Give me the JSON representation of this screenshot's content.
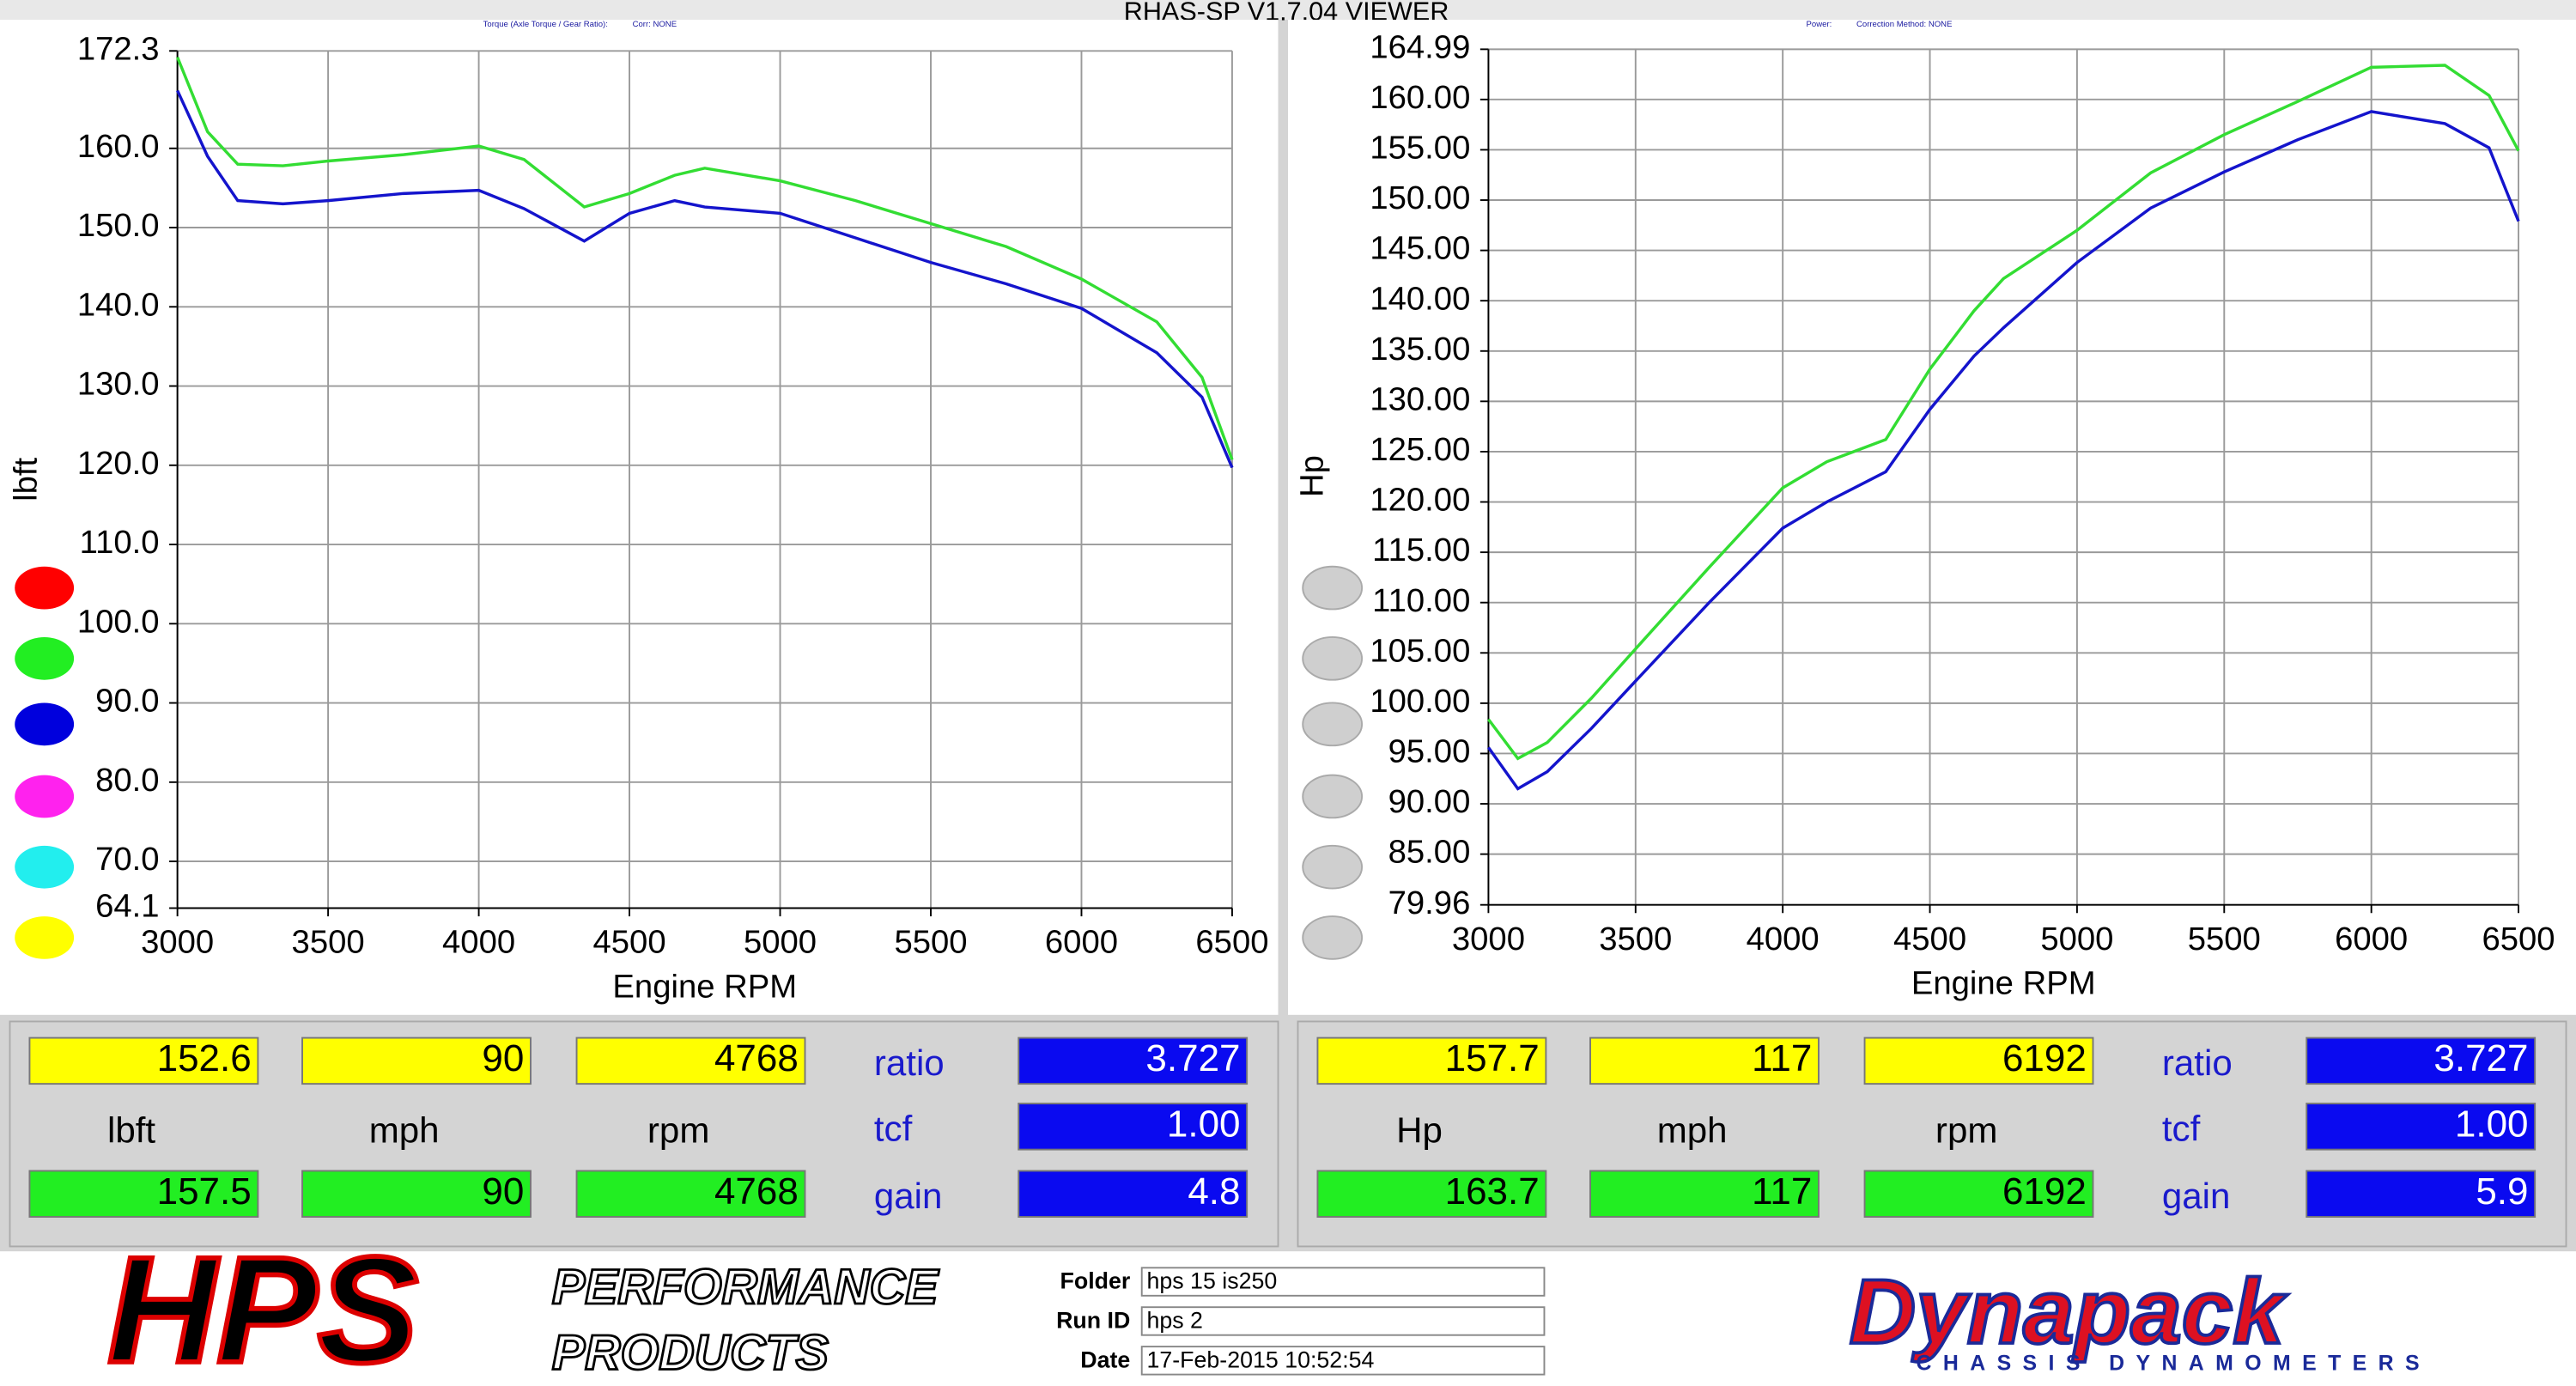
{
  "window_title": "RHAS-SP V1.7.04  VIEWER",
  "chart_data": [
    {
      "type": "line",
      "title": "Torque (Axle Torque / Gear Ratio):",
      "subtitle": "Corr: NONE",
      "x_label": "Engine RPM",
      "y_label": "lbft",
      "x": [
        3000,
        3100,
        3200,
        3350,
        3500,
        3750,
        4000,
        4150,
        4350,
        4500,
        4650,
        4750,
        5000,
        5250,
        5500,
        5750,
        6000,
        6250,
        6400,
        6500
      ],
      "series": [
        {
          "color": "#33dd33",
          "values": [
            171.5,
            162.1,
            158.0,
            157.8,
            158.4,
            159.2,
            160.3,
            158.6,
            152.6,
            154.3,
            156.6,
            157.5,
            155.9,
            153.4,
            150.5,
            147.6,
            143.5,
            138.1,
            131.1,
            120.7
          ]
        },
        {
          "color": "#1414cc",
          "values": [
            167.3,
            159.0,
            153.4,
            153.0,
            153.4,
            154.3,
            154.7,
            152.4,
            148.3,
            151.8,
            153.4,
            152.6,
            151.8,
            148.7,
            145.6,
            142.9,
            139.8,
            134.2,
            128.6,
            119.7
          ]
        }
      ],
      "xlim": [
        3000,
        6500
      ],
      "xticks": [
        3000,
        3500,
        4000,
        4500,
        5000,
        5500,
        6000,
        6500
      ],
      "ylim": [
        64.1,
        172.3
      ],
      "yticks": [
        64.1,
        {
          "value": 70,
          "label": "70.0"
        },
        {
          "value": 80,
          "label": "80.0"
        },
        {
          "value": 90,
          "label": "90.0"
        },
        {
          "value": 100,
          "label": "100.0"
        },
        {
          "value": 110,
          "label": "110.0"
        },
        {
          "value": 120,
          "label": "120.0"
        },
        {
          "value": 130,
          "label": "130.0"
        },
        {
          "value": 140,
          "label": "140.0"
        },
        {
          "value": 150,
          "label": "150.0"
        },
        {
          "value": 160,
          "label": "160.0"
        },
        172.3
      ],
      "grid": true
    },
    {
      "type": "line",
      "title": "Power:",
      "subtitle": "Correction Method: NONE",
      "x_label": "Engine RPM",
      "y_label": "Hp",
      "x": [
        3000,
        3100,
        3200,
        3350,
        3500,
        3750,
        4000,
        4150,
        4350,
        4500,
        4650,
        4750,
        5000,
        5250,
        5500,
        5750,
        6000,
        6250,
        6400,
        6500
      ],
      "series": [
        {
          "color": "#33dd33",
          "values": [
            98.4,
            94.5,
            96.1,
            100.5,
            105.4,
            113.5,
            121.4,
            124.0,
            126.2,
            133.2,
            139.0,
            142.2,
            147.0,
            152.7,
            156.5,
            159.8,
            163.2,
            163.4,
            160.4,
            154.9
          ]
        },
        {
          "color": "#1414cc",
          "values": [
            95.6,
            91.5,
            93.2,
            97.5,
            102.2,
            110.0,
            117.4,
            120.0,
            123.0,
            129.2,
            134.5,
            137.3,
            143.8,
            149.2,
            152.8,
            156.0,
            158.8,
            157.6,
            155.2,
            147.9
          ]
        }
      ],
      "xlim": [
        3000,
        6500
      ],
      "xticks": [
        3000,
        3500,
        4000,
        4500,
        5000,
        5500,
        6000,
        6500
      ],
      "ylim": [
        79.96,
        164.99
      ],
      "yticks": [
        79.96,
        {
          "value": 85,
          "label": "85.00"
        },
        {
          "value": 90,
          "label": "90.00"
        },
        {
          "value": 95,
          "label": "95.00"
        },
        {
          "value": 100,
          "label": "100.00"
        },
        {
          "value": 105,
          "label": "105.00"
        },
        {
          "value": 110,
          "label": "110.00"
        },
        {
          "value": 115,
          "label": "115.00"
        },
        {
          "value": 120,
          "label": "120.00"
        },
        {
          "value": 125,
          "label": "125.00"
        },
        {
          "value": 130,
          "label": "130.00"
        },
        {
          "value": 135,
          "label": "135.00"
        },
        {
          "value": 140,
          "label": "140.00"
        },
        {
          "value": 145,
          "label": "145.00"
        },
        {
          "value": 150,
          "label": "150.00"
        },
        {
          "value": 155,
          "label": "155.00"
        },
        {
          "value": 160,
          "label": "160.00"
        },
        164.99
      ],
      "grid": true
    }
  ],
  "readouts": [
    {
      "top": [
        "152.6",
        "90",
        "4768"
      ],
      "units": [
        "lbft",
        "mph",
        "rpm"
      ],
      "bottom": [
        "157.5",
        "90",
        "4768"
      ],
      "params": [
        {
          "label": "ratio",
          "value": "3.727"
        },
        {
          "label": "tcf",
          "value": "1.00"
        },
        {
          "label": "gain",
          "value": "4.8"
        }
      ]
    },
    {
      "top": [
        "157.7",
        "117",
        "6192"
      ],
      "units": [
        "Hp",
        "mph",
        "rpm"
      ],
      "bottom": [
        "163.7",
        "117",
        "6192"
      ],
      "params": [
        {
          "label": "ratio",
          "value": "3.727"
        },
        {
          "label": "tcf",
          "value": "1.00"
        },
        {
          "label": "gain",
          "value": "5.9"
        }
      ]
    }
  ],
  "footer": {
    "logo": "HPS",
    "logo_line1": "PERFORMANCE",
    "logo_line2": "PRODUCTS",
    "fields": [
      {
        "label": "Folder",
        "value": "hps 15 is250"
      },
      {
        "label": "Run ID",
        "value": "hps 2"
      },
      {
        "label": "Date",
        "value": "17-Feb-2015  10:52:54"
      }
    ],
    "brand": "Dynapack",
    "brand_sub": "CHASSIS    DYNAMOMETERS"
  }
}
